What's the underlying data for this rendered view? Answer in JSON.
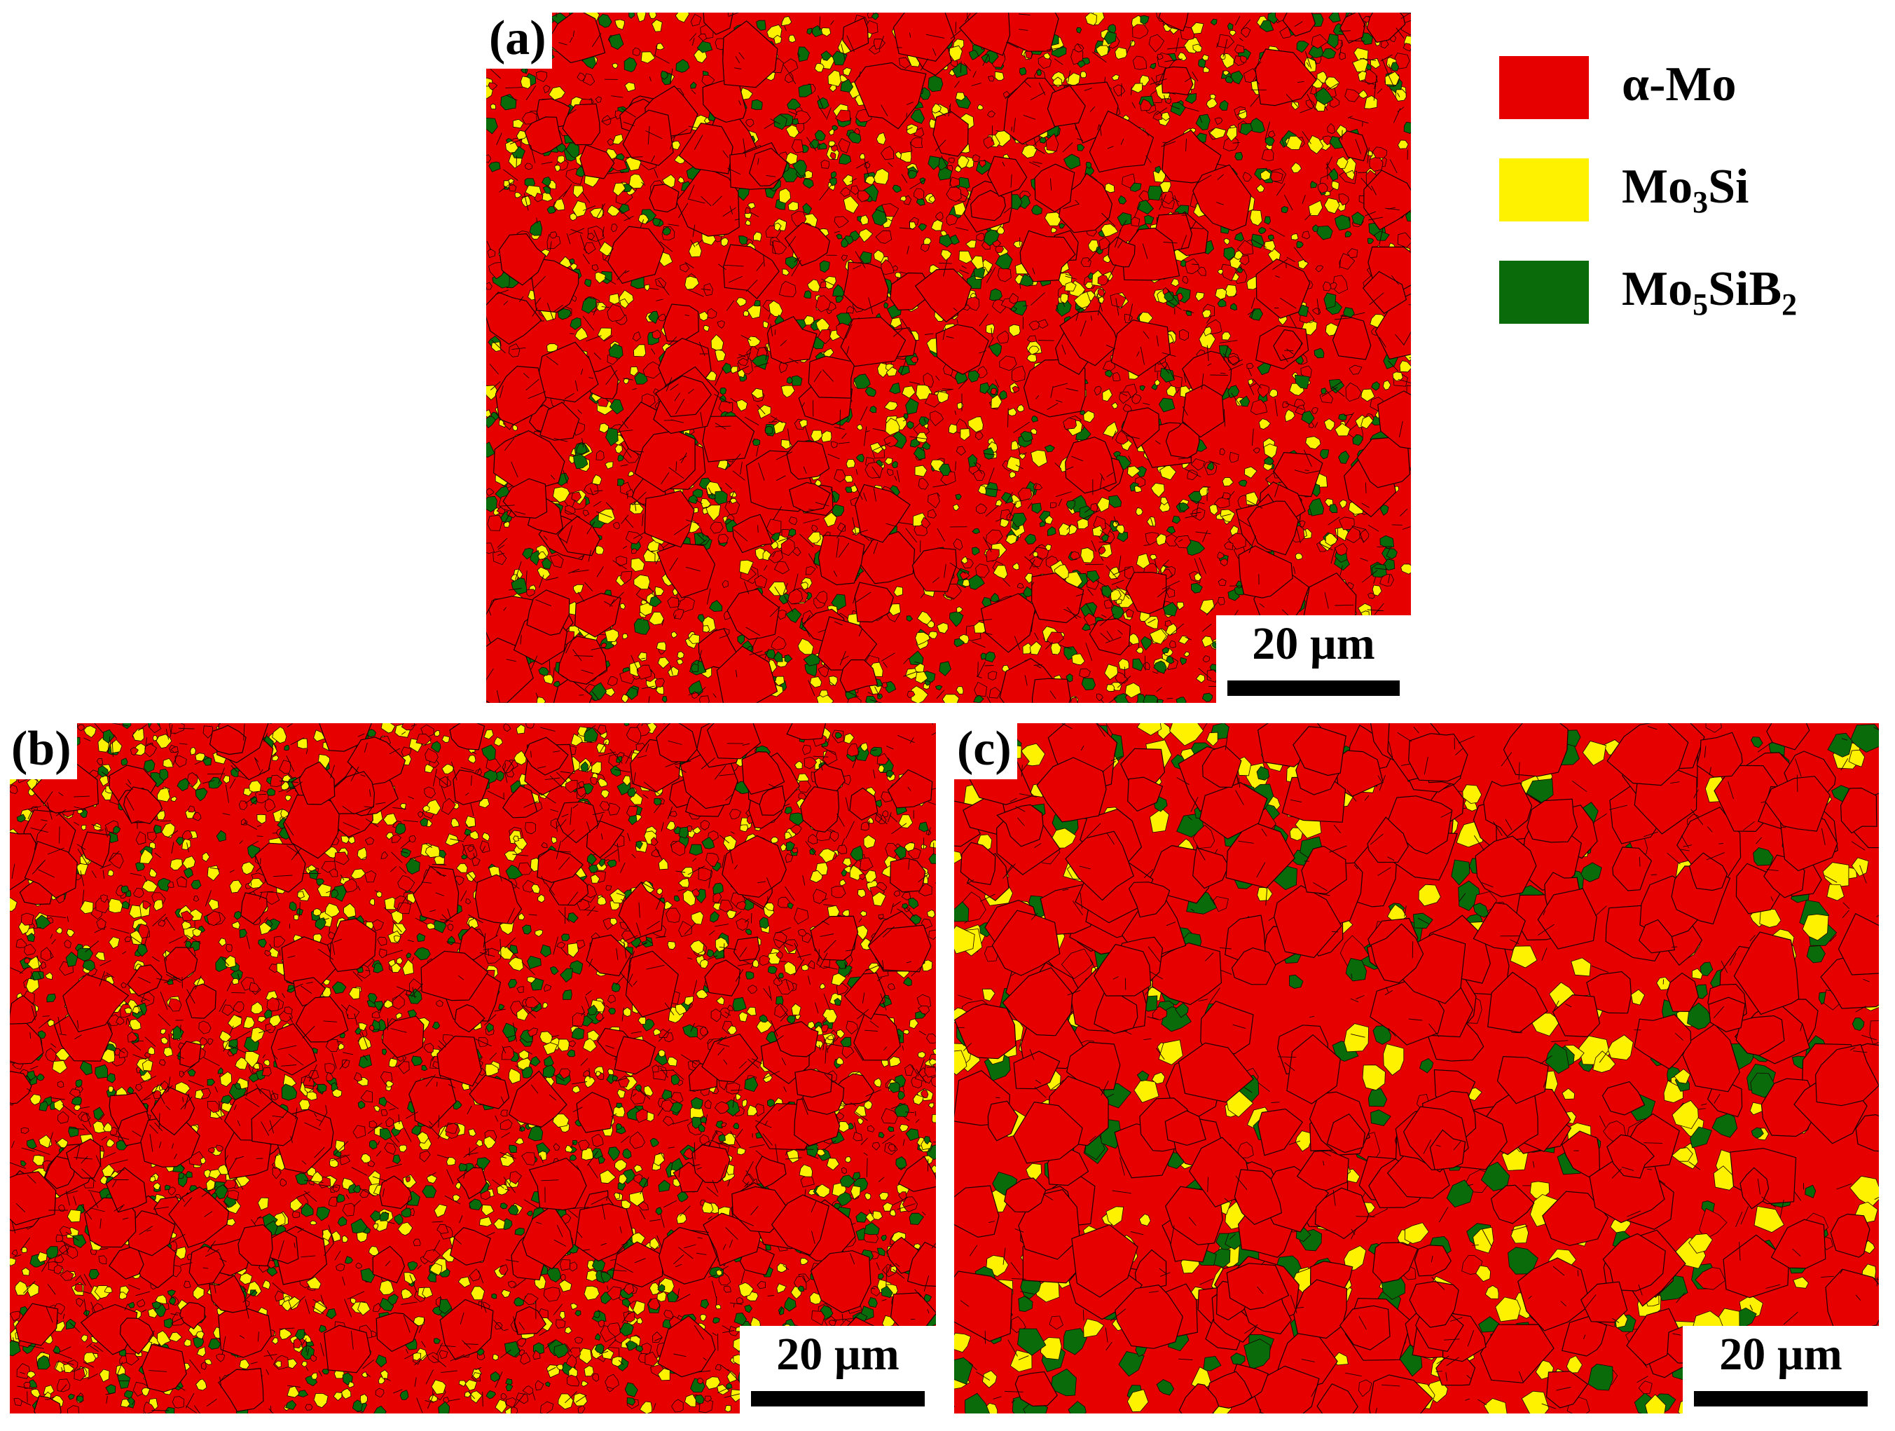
{
  "figure": {
    "panels": [
      {
        "id": "a",
        "label": "(a)",
        "scale_text": "20 µm"
      },
      {
        "id": "b",
        "label": "(b)",
        "scale_text": "20 µm"
      },
      {
        "id": "c",
        "label": "(c)",
        "scale_text": "20 µm"
      }
    ],
    "legend": [
      {
        "id": "alpha-mo",
        "prefix": "α-Mo",
        "sub1": "",
        "mid": "",
        "sub2": "",
        "color": "#e60000"
      },
      {
        "id": "mo3si",
        "prefix": "Mo",
        "sub1": "3",
        "mid": "Si",
        "sub2": "",
        "color": "#fff200"
      },
      {
        "id": "mo5sib2",
        "prefix": "Mo",
        "sub1": "5",
        "mid": "SiB",
        "sub2": "2",
        "color": "#0a6b0a"
      }
    ],
    "colors": {
      "alpha_mo": "#e60000",
      "mo3si": "#fff200",
      "mo5sib2": "#0a6b0a",
      "grain_boundary": "#1a0000"
    }
  }
}
